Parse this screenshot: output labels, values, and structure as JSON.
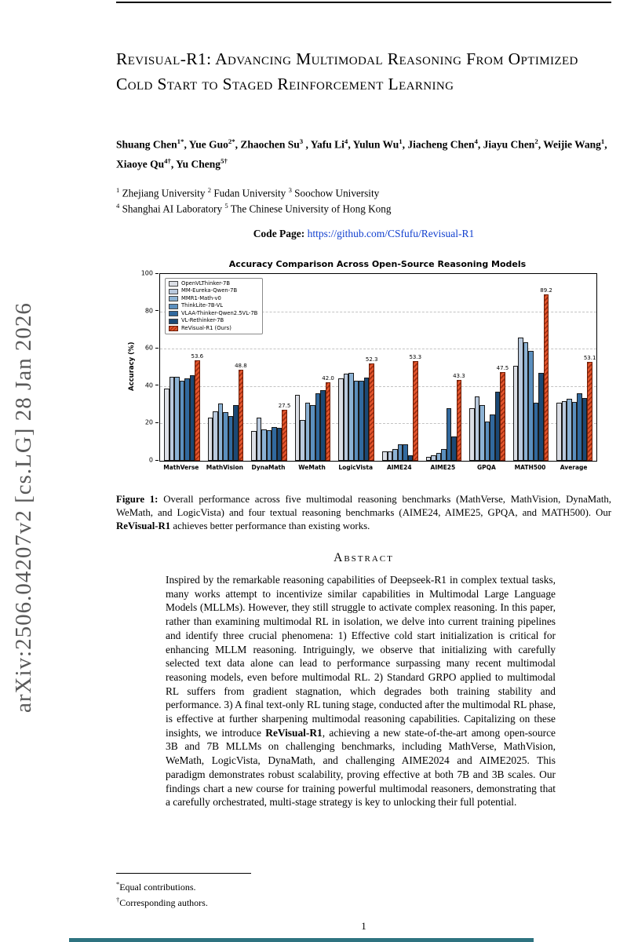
{
  "arxiv_stamp": "arXiv:2506.04207v2  [cs.LG]  28 Jan 2026",
  "title": "Revisual-R1: Advancing Multimodal Reasoning From Optimized Cold Start to Staged Reinforcement Learning",
  "authors_segments": [
    {
      "t": "Shuang Chen",
      "b": 1
    },
    {
      "t": "1*",
      "sup": 1
    },
    {
      "t": ", ",
      "b": 1
    },
    {
      "t": "Yue Guo",
      "b": 1
    },
    {
      "t": "2*",
      "sup": 1
    },
    {
      "t": ", ",
      "b": 1
    },
    {
      "t": "Zhaochen Su",
      "b": 1
    },
    {
      "t": "3",
      "sup": 1
    },
    {
      "t": " , ",
      "b": 1
    },
    {
      "t": "Yafu Li",
      "b": 1
    },
    {
      "t": "4",
      "sup": 1
    },
    {
      "t": ", ",
      "b": 1
    },
    {
      "t": "Yulun Wu",
      "b": 1
    },
    {
      "t": "1",
      "sup": 1
    },
    {
      "t": ", ",
      "b": 1
    },
    {
      "t": "Jiacheng Chen",
      "b": 1
    },
    {
      "t": "4",
      "sup": 1
    },
    {
      "t": ", ",
      "b": 1
    },
    {
      "t": "Jiayu Chen",
      "b": 1
    },
    {
      "t": "2",
      "sup": 1
    },
    {
      "t": ", ",
      "b": 1
    },
    {
      "t": "Weijie Wang",
      "b": 1
    },
    {
      "t": "1",
      "sup": 1
    },
    {
      "t": ", ",
      "b": 1
    },
    {
      "t": "Xiaoye Qu",
      "b": 1
    },
    {
      "t": "4†",
      "sup": 1
    },
    {
      "t": ", ",
      "b": 1
    },
    {
      "t": "Yu Cheng",
      "b": 1
    },
    {
      "t": "5†",
      "sup": 1
    }
  ],
  "affil_line1_segments": [
    {
      "t": "1",
      "sup": 1
    },
    {
      "t": " Zhejiang University  "
    },
    {
      "t": "2",
      "sup": 1
    },
    {
      "t": " Fudan University  "
    },
    {
      "t": "3",
      "sup": 1
    },
    {
      "t": " Soochow University"
    }
  ],
  "affil_line2_segments": [
    {
      "t": "4",
      "sup": 1
    },
    {
      "t": " Shanghai AI Laboratory  "
    },
    {
      "t": "5",
      "sup": 1
    },
    {
      "t": " The Chinese University of Hong Kong"
    }
  ],
  "code_page": {
    "label": "Code Page:",
    "url": "https://github.com/CSfufu/Revisual-R1"
  },
  "colors": {
    "link": "#1240cf",
    "arxiv_stamp_gray": "#595959",
    "revisual_accent": "#e2542b",
    "bottom_strip": "#2e7380"
  },
  "figure": {
    "caption_segments": [
      {
        "t": "Figure 1: ",
        "b": 1
      },
      {
        "t": "Overall performance across five multimodal reasoning benchmarks (MathVerse, MathVision, DynaMath, WeMath, and LogicVista) and four textual reasoning benchmarks (AIME24, AIME25, GPQA, and MATH500). Our "
      },
      {
        "t": "ReVisual-R1",
        "b": 1
      },
      {
        "t": " achieves better performance than existing works."
      }
    ]
  },
  "chart_data": {
    "type": "bar",
    "title": "Accuracy Comparison Across Open-Source Reasoning Models",
    "xlabel": "",
    "ylabel": "Accuracy (%)",
    "ylim": [
      0,
      100
    ],
    "yticks": [
      0,
      20,
      40,
      60,
      80,
      100
    ],
    "grid": "dashed-horizontal",
    "legend_position": "upper-left",
    "categories": [
      "MathVerse",
      "MathVision",
      "DynaMath",
      "WeMath",
      "LogicVista",
      "AIME24",
      "AIME25",
      "GPQA",
      "MATH500",
      "Average"
    ],
    "series": [
      {
        "name": "OpenVLThinker-7B",
        "color": "#dcdfe6",
        "values": [
          38.5,
          23.0,
          16.0,
          35.5,
          44.0,
          5.0,
          2.0,
          28.0,
          51.0,
          31.0
        ]
      },
      {
        "name": "MM-Eureka-Qwen-7B",
        "color": "#b9c9dd",
        "values": [
          45.0,
          26.5,
          23.0,
          22.0,
          46.5,
          5.0,
          3.0,
          34.5,
          66.0,
          32.0
        ]
      },
      {
        "name": "MMR1-Math-v0",
        "color": "#8cb2d4",
        "values": [
          45.0,
          30.5,
          17.0,
          31.0,
          47.0,
          6.5,
          4.0,
          30.0,
          63.5,
          33.0
        ]
      },
      {
        "name": "ThinkLite-7B-VL",
        "color": "#5b8fbe",
        "values": [
          43.0,
          26.0,
          16.5,
          30.0,
          43.0,
          9.0,
          6.5,
          21.0,
          59.0,
          31.5
        ]
      },
      {
        "name": "VLAA-Thinker-Qwen2.5VL-7B",
        "color": "#31699e",
        "values": [
          44.0,
          24.0,
          18.0,
          36.0,
          43.0,
          9.0,
          28.0,
          25.0,
          31.0,
          36.0
        ]
      },
      {
        "name": "VL-Rethinker-7B",
        "color": "#1c4975",
        "values": [
          46.0,
          30.0,
          17.5,
          38.0,
          44.5,
          3.0,
          13.0,
          37.0,
          47.0,
          33.5
        ]
      },
      {
        "name": "ReVisual-R1 (Ours)",
        "color": "#e2542b",
        "hatch": true,
        "labeled": true,
        "values": [
          53.6,
          48.8,
          27.5,
          42.0,
          52.3,
          53.3,
          43.3,
          47.5,
          89.2,
          53.1
        ]
      }
    ]
  },
  "abstract": {
    "heading": "Abstract",
    "segments": [
      {
        "t": "Inspired by the remarkable reasoning capabilities of Deepseek-R1 in complex textual tasks, many works attempt to incentivize similar capabilities in Multimodal Large Language Models (MLLMs). However, they still struggle to activate complex reasoning. In this paper, rather than examining multimodal RL in isolation, we delve into current training pipelines and identify three crucial phenomena: 1) Effective cold start initialization is critical for enhancing MLLM reasoning. Intriguingly, we observe that initializing with carefully selected text data alone can lead to performance surpassing many recent multimodal reasoning models, even before multimodal RL. 2) Standard GRPO applied to multimodal RL suffers from gradient stagnation, which degrades both training stability and performance. 3) A final text-only RL tuning stage, conducted after the multimodal RL phase, is effective at further sharpening multimodal reasoning capabilities. Capitalizing on these insights, we introduce "
      },
      {
        "t": "ReVisual-R1",
        "b": 1
      },
      {
        "t": ", achieving a new state-of-the-art among open-source 3B and 7B MLLMs on challenging benchmarks, including MathVerse, MathVision, WeMath, LogicVista, DynaMath, and challenging AIME2024 and AIME2025. This paradigm demonstrates robust scalability, proving effective at both 7B and 3B scales. Our findings chart a new course for training powerful multimodal reasoners, demonstrating that a carefully orchestrated, multi-stage strategy is key to unlocking their full potential."
      }
    ]
  },
  "footnotes": {
    "fn1_segments": [
      {
        "t": "*",
        "sup": 1
      },
      {
        "t": "Equal contributions."
      }
    ],
    "fn2_segments": [
      {
        "t": "†",
        "sup": 1
      },
      {
        "t": "Corresponding authors."
      }
    ]
  },
  "page_number": "1"
}
